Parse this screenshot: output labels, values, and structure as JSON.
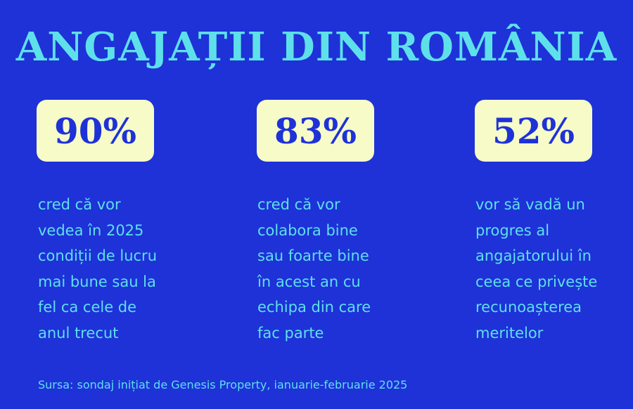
{
  "title": "ANGAJAȚII DIN ROMÂNIA",
  "stats": [
    {
      "value": "90%",
      "description": "cred că vor\nvedea în 2025\ncondiții de lucru\nmai bune sau la\nfel ca cele de\nanul trecut"
    },
    {
      "value": "83%",
      "description": "cred că vor\ncolabora bine\nsau foarte bine\nîn acest an cu\nechipa din care\nfac parte"
    },
    {
      "value": "52%",
      "description": "vor să vadă un\nprogres al\nangajatorului în\nceea ce privește\nrecunoașterea\nmeritelor"
    }
  ],
  "source": "Sursa: sondaj inițiat de Genesis Property, ianuarie-februarie 2025",
  "colors": {
    "background": "#1e32d8",
    "accent": "#5ee0ea",
    "card": "#f6fbc8"
  }
}
